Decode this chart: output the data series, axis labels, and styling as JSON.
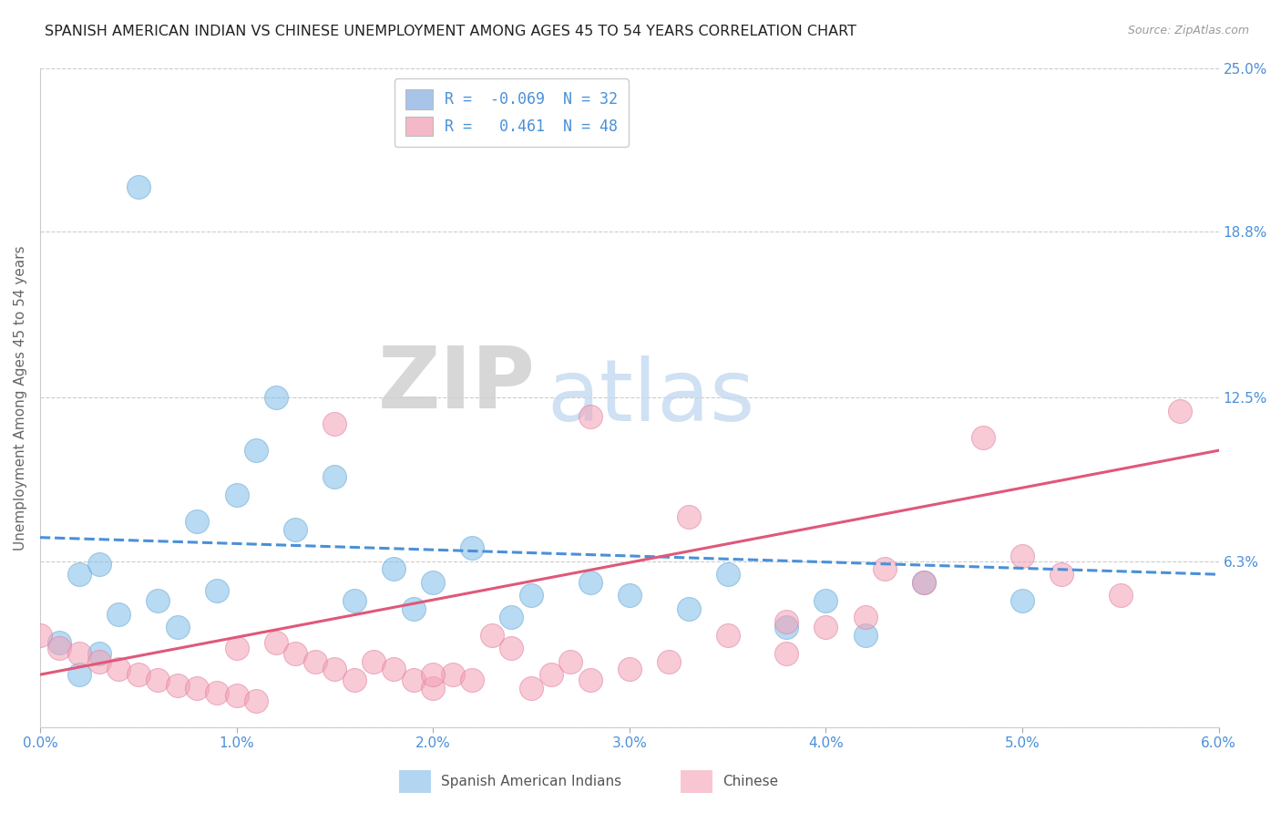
{
  "title": "SPANISH AMERICAN INDIAN VS CHINESE UNEMPLOYMENT AMONG AGES 45 TO 54 YEARS CORRELATION CHART",
  "source": "Source: ZipAtlas.com",
  "ylabel": "Unemployment Among Ages 45 to 54 years",
  "xlim": [
    0.0,
    0.06
  ],
  "ylim": [
    0.0,
    0.25
  ],
  "yticks": [
    0.0,
    0.063,
    0.125,
    0.188,
    0.25
  ],
  "ytick_labels": [
    "",
    "6.3%",
    "12.5%",
    "18.8%",
    "25.0%"
  ],
  "xticks": [
    0.0,
    0.01,
    0.02,
    0.03,
    0.04,
    0.05,
    0.06
  ],
  "xtick_labels": [
    "0.0%",
    "1.0%",
    "2.0%",
    "3.0%",
    "4.0%",
    "5.0%",
    "6.0%"
  ],
  "watermark_zip": "ZIP",
  "watermark_atlas": "atlas",
  "legend_label1": "R =  -0.069  N = 32",
  "legend_label2": "R =   0.461  N = 48",
  "legend_color1": "#a8c4e8",
  "legend_color2": "#f4b8c8",
  "series1_color": "#7fbce8",
  "series2_color": "#f4a0b5",
  "series1_edge": "#6aaad4",
  "series2_edge": "#e080a0",
  "trend1_color": "#4a90d9",
  "trend2_color": "#e05878",
  "grid_color": "#cccccc",
  "axis_label_color": "#666666",
  "tick_label_color": "#4a90d9",
  "background_color": "#ffffff",
  "bottom_legend_label1": "Spanish American Indians",
  "bottom_legend_label2": "Chinese",
  "scatter_size": 350,
  "scatter_alpha": 0.55,
  "x1_coords": [
    0.005,
    0.008,
    0.003,
    0.002,
    0.009,
    0.006,
    0.004,
    0.007,
    0.001,
    0.003,
    0.012,
    0.015,
    0.01,
    0.013,
    0.018,
    0.02,
    0.016,
    0.022,
    0.025,
    0.019,
    0.024,
    0.028,
    0.03,
    0.033,
    0.035,
    0.04,
    0.038,
    0.045,
    0.042,
    0.05,
    0.002,
    0.011
  ],
  "y1_coords": [
    0.205,
    0.078,
    0.062,
    0.058,
    0.052,
    0.048,
    0.043,
    0.038,
    0.032,
    0.028,
    0.125,
    0.095,
    0.088,
    0.075,
    0.06,
    0.055,
    0.048,
    0.068,
    0.05,
    0.045,
    0.042,
    0.055,
    0.05,
    0.045,
    0.058,
    0.048,
    0.038,
    0.055,
    0.035,
    0.048,
    0.02,
    0.105
  ],
  "x2_coords": [
    0.0,
    0.001,
    0.002,
    0.003,
    0.004,
    0.005,
    0.006,
    0.007,
    0.008,
    0.009,
    0.01,
    0.011,
    0.012,
    0.013,
    0.014,
    0.015,
    0.016,
    0.017,
    0.018,
    0.019,
    0.02,
    0.021,
    0.022,
    0.023,
    0.024,
    0.025,
    0.026,
    0.027,
    0.028,
    0.03,
    0.032,
    0.035,
    0.038,
    0.04,
    0.042,
    0.043,
    0.045,
    0.05,
    0.052,
    0.055,
    0.058,
    0.028,
    0.015,
    0.033,
    0.01,
    0.048,
    0.02,
    0.038
  ],
  "y2_coords": [
    0.035,
    0.03,
    0.028,
    0.025,
    0.022,
    0.02,
    0.018,
    0.016,
    0.015,
    0.013,
    0.012,
    0.01,
    0.032,
    0.028,
    0.025,
    0.022,
    0.018,
    0.025,
    0.022,
    0.018,
    0.015,
    0.02,
    0.018,
    0.035,
    0.03,
    0.015,
    0.02,
    0.025,
    0.018,
    0.022,
    0.025,
    0.035,
    0.04,
    0.038,
    0.042,
    0.06,
    0.055,
    0.065,
    0.058,
    0.05,
    0.12,
    0.118,
    0.115,
    0.08,
    0.03,
    0.11,
    0.02,
    0.028
  ],
  "trend1_x": [
    0.0,
    0.06
  ],
  "trend1_y": [
    0.072,
    0.058
  ],
  "trend2_x": [
    0.0,
    0.06
  ],
  "trend2_y": [
    0.02,
    0.105
  ]
}
